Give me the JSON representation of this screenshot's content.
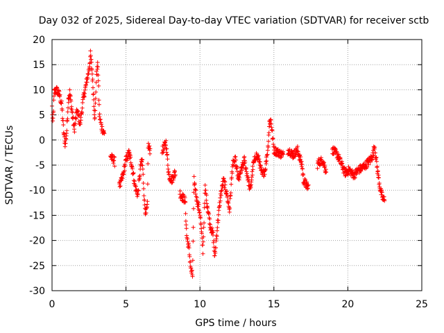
{
  "chart_data": {
    "type": "scatter",
    "title": "Day 032 of 2025, Sidereal Day-to-day VTEC variation (SDTVAR) for receiver sctb",
    "xlabel": "GPS time / hours",
    "ylabel": "SDTVAR / TECUs",
    "xlim": [
      0,
      25
    ],
    "ylim": [
      -30,
      20
    ],
    "xticks": [
      0,
      5,
      10,
      15,
      20,
      25
    ],
    "yticks": [
      -30,
      -25,
      -20,
      -15,
      -10,
      -5,
      0,
      5,
      10,
      15,
      20
    ],
    "grid": true,
    "marker": "plus",
    "color": "#ff0000",
    "series": [
      {
        "name": "sctb",
        "anchors": [
          [
            0.0,
            6.5
          ],
          [
            0.05,
            3.0
          ],
          [
            0.15,
            9.5
          ],
          [
            0.3,
            10.0
          ],
          [
            0.5,
            9.0
          ],
          [
            0.65,
            7.0
          ],
          [
            0.8,
            1.0
          ],
          [
            0.9,
            -1.0
          ],
          [
            1.0,
            2.0
          ],
          [
            1.1,
            8.0
          ],
          [
            1.2,
            9.5
          ],
          [
            1.3,
            7.0
          ],
          [
            1.5,
            2.0
          ],
          [
            1.7,
            6.0
          ],
          [
            1.9,
            3.0
          ],
          [
            2.1,
            8.0
          ],
          [
            2.3,
            11.0
          ],
          [
            2.5,
            14.0
          ],
          [
            2.6,
            17.0
          ],
          [
            2.7,
            14.0
          ],
          [
            2.8,
            9.0
          ],
          [
            2.9,
            4.0
          ],
          [
            3.0,
            13.0
          ],
          [
            3.1,
            15.0
          ],
          [
            3.2,
            5.0
          ],
          [
            3.35,
            2.5
          ],
          [
            3.5,
            1.5
          ],
          [
            4.0,
            -3.5
          ],
          [
            4.2,
            -4.0
          ],
          [
            4.6,
            -9.0
          ],
          [
            4.8,
            -7.0
          ],
          [
            5.0,
            -4.0
          ],
          [
            5.2,
            -2.5
          ],
          [
            5.4,
            -5.0
          ],
          [
            5.6,
            -9.0
          ],
          [
            5.8,
            -11.0
          ],
          [
            6.0,
            -5.0
          ],
          [
            6.1,
            -4.0
          ],
          [
            6.25,
            -12.5
          ],
          [
            6.35,
            -15.0
          ],
          [
            6.45,
            -13.0
          ],
          [
            6.5,
            -1.0
          ],
          [
            6.6,
            -2.0
          ],
          [
            7.5,
            -2.0
          ],
          [
            7.7,
            -0.5
          ],
          [
            7.9,
            -7.0
          ],
          [
            8.1,
            -8.0
          ],
          [
            8.3,
            -6.5
          ],
          [
            8.7,
            -11.0
          ],
          [
            9.0,
            -12.0
          ],
          [
            9.1,
            -19.0
          ],
          [
            9.25,
            -21.5
          ],
          [
            9.4,
            -26.0
          ],
          [
            9.5,
            -27.0
          ],
          [
            9.6,
            -8.0
          ],
          [
            9.8,
            -12.0
          ],
          [
            10.0,
            -14.5
          ],
          [
            10.2,
            -22.0
          ],
          [
            10.35,
            -9.5
          ],
          [
            10.5,
            -13.0
          ],
          [
            10.7,
            -17.0
          ],
          [
            10.9,
            -19.0
          ],
          [
            11.0,
            -23.5
          ],
          [
            11.2,
            -16.5
          ],
          [
            11.4,
            -11.0
          ],
          [
            11.6,
            -8.0
          ],
          [
            11.8,
            -10.5
          ],
          [
            12.0,
            -14.0
          ],
          [
            12.2,
            -5.0
          ],
          [
            12.4,
            -4.0
          ],
          [
            12.6,
            -8.0
          ],
          [
            12.8,
            -6.0
          ],
          [
            13.0,
            -4.0
          ],
          [
            13.2,
            -7.0
          ],
          [
            13.4,
            -10.0
          ],
          [
            13.6,
            -5.0
          ],
          [
            13.8,
            -3.0
          ],
          [
            14.0,
            -4.0
          ],
          [
            14.2,
            -7.0
          ],
          [
            14.4,
            -6.0
          ],
          [
            14.6,
            -1.5
          ],
          [
            14.7,
            3.5
          ],
          [
            14.8,
            4.0
          ],
          [
            15.0,
            -2.0
          ],
          [
            15.3,
            -2.5
          ],
          [
            15.6,
            -3.0
          ],
          [
            16.0,
            -2.0
          ],
          [
            16.3,
            -3.0
          ],
          [
            16.6,
            -2.0
          ],
          [
            16.9,
            -5.0
          ],
          [
            17.0,
            -8.0
          ],
          [
            17.3,
            -9.5
          ],
          [
            18.0,
            -4.5
          ],
          [
            18.3,
            -4.0
          ],
          [
            18.5,
            -6.0
          ],
          [
            19.0,
            -2.0
          ],
          [
            19.3,
            -3.0
          ],
          [
            19.6,
            -5.0
          ],
          [
            19.8,
            -6.5
          ],
          [
            20.1,
            -6.0
          ],
          [
            20.4,
            -7.0
          ],
          [
            20.7,
            -6.0
          ],
          [
            21.0,
            -5.5
          ],
          [
            21.2,
            -5.0
          ],
          [
            21.5,
            -4.0
          ],
          [
            21.7,
            -3.0
          ],
          [
            21.8,
            -1.0
          ],
          [
            22.0,
            -6.0
          ],
          [
            22.2,
            -10.0
          ],
          [
            22.4,
            -12.0
          ],
          [
            22.5,
            -11.5
          ]
        ]
      }
    ]
  }
}
